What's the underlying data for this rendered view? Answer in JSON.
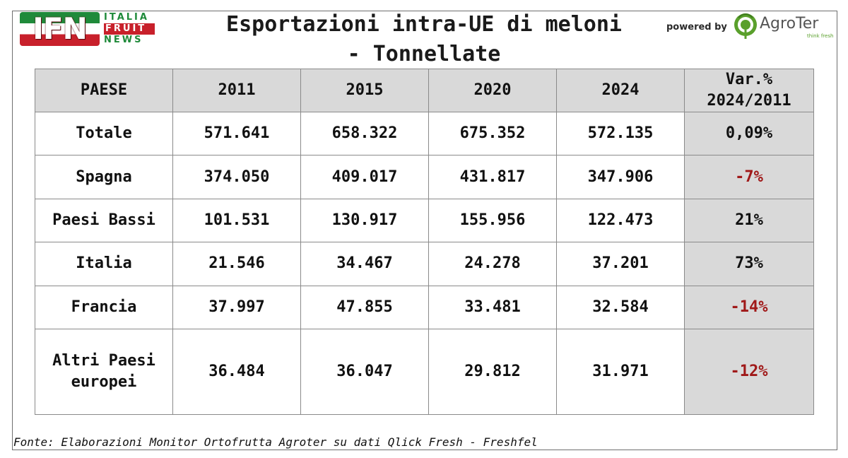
{
  "header": {
    "logo_left": {
      "letters": "IFN",
      "words": [
        "ITALIA",
        "FRUIT",
        "NEWS"
      ]
    },
    "title_line1": "Esportazioni intra-UE di meloni",
    "title_line2": "- Tonnellate",
    "powered_by": "powered by",
    "logo_right": {
      "name": "AgroTer",
      "tagline": "think fresh"
    }
  },
  "colors": {
    "header_fill": "#d9d9d9",
    "negative_text": "#a01919",
    "logo_green": "#1f8a3a",
    "logo_red": "#c8202b"
  },
  "chart_data": {
    "type": "table",
    "title": "Esportazioni intra-UE di meloni - Tonnellate",
    "columns": [
      "PAESE",
      "2011",
      "2015",
      "2020",
      "2024",
      "Var.% 2024/2011"
    ],
    "column_lines": [
      [
        "PAESE"
      ],
      [
        "2011"
      ],
      [
        "2015"
      ],
      [
        "2020"
      ],
      [
        "2024"
      ],
      [
        "Var.%",
        "2024/2011"
      ]
    ],
    "rows": [
      {
        "country": [
          "Totale"
        ],
        "values": [
          "571.641",
          "658.322",
          "675.352",
          "572.135"
        ],
        "var": "0,09%",
        "negative": false
      },
      {
        "country": [
          "Spagna"
        ],
        "values": [
          "374.050",
          "409.017",
          "431.817",
          "347.906"
        ],
        "var": "-7%",
        "negative": true
      },
      {
        "country": [
          "Paesi Bassi"
        ],
        "values": [
          "101.531",
          "130.917",
          "155.956",
          "122.473"
        ],
        "var": "21%",
        "negative": false
      },
      {
        "country": [
          "Italia"
        ],
        "values": [
          "21.546",
          "34.467",
          "24.278",
          "37.201"
        ],
        "var": "73%",
        "negative": false
      },
      {
        "country": [
          "Francia"
        ],
        "values": [
          "37.997",
          "47.855",
          "33.481",
          "32.584"
        ],
        "var": "-14%",
        "negative": true
      },
      {
        "country": [
          "Altri Paesi",
          "europei"
        ],
        "values": [
          "36.484",
          "36.047",
          "29.812",
          "31.971"
        ],
        "var": "-12%",
        "negative": true
      }
    ]
  },
  "footer": {
    "source": "Fonte: Elaborazioni Monitor Ortofrutta Agroter su dati Qlick Fresh - Freshfel"
  }
}
